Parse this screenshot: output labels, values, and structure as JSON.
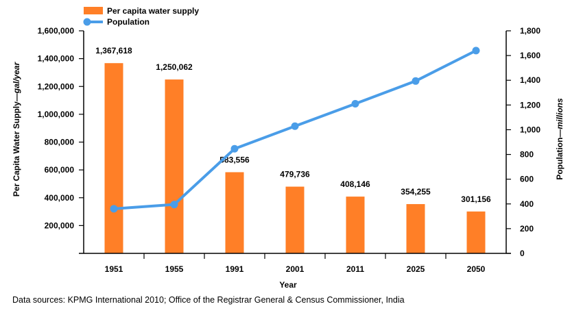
{
  "chart_data": {
    "type": "bar",
    "categories": [
      "1951",
      "1955",
      "1991",
      "2001",
      "2011",
      "2025",
      "2050"
    ],
    "series": [
      {
        "name": "Per capita water supply",
        "type": "bar",
        "axis": "left",
        "values": [
          1367618,
          1250062,
          583556,
          479736,
          408146,
          354255,
          301156
        ],
        "labels": [
          "1,367,618",
          "1,250,062",
          "583,556",
          "479,736",
          "408,146",
          "354,255",
          "301,156"
        ]
      },
      {
        "name": "Population",
        "type": "line",
        "axis": "right",
        "values": [
          361,
          395,
          846,
          1029,
          1210,
          1394,
          1640
        ]
      }
    ],
    "xlabel": "Year",
    "ylabel_left": {
      "main": "Per Capita Water Supply—",
      "unit": "gal/year"
    },
    "ylabel_right": {
      "main": "Population—",
      "unit": "millions"
    },
    "ylim_left": [
      0,
      1600000
    ],
    "ylim_right": [
      0,
      1800
    ],
    "yticks_left": [
      "200,000",
      "400,000",
      "600,000",
      "800,000",
      "1,000,000",
      "1,200,000",
      "1,400,000",
      "1,600,000"
    ],
    "yticks_right": [
      "0",
      "200",
      "400",
      "600",
      "800",
      "1,000",
      "1,200",
      "1,400",
      "1,600",
      "1,800"
    ],
    "grid": false,
    "legend_position": "top-left",
    "colors": {
      "bar": "#ff7f27",
      "line": "#4a9de8",
      "axis": "#000000"
    }
  },
  "source_note": "Data sources: KPMG International 2010; Office of the Registrar General & Census Commissioner, India"
}
